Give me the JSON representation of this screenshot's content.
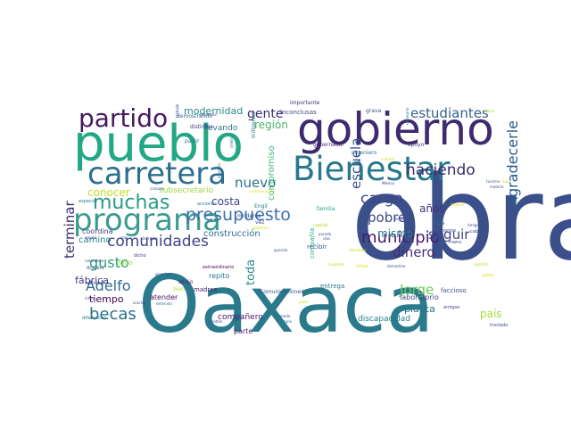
{
  "wordcloud": {
    "words": [
      {
        "text": "obra",
        "color": "#3b4f8a",
        "weight": 100
      },
      {
        "text": "Oaxaca",
        "color": "#2b7a8c",
        "weight": 98
      },
      {
        "text": "pueblo",
        "color": "#22a884",
        "weight": 78
      },
      {
        "text": "gobierno",
        "color": "#3e2a6e",
        "weight": 72
      },
      {
        "text": "Bienestar",
        "color": "#2a788e",
        "weight": 62
      },
      {
        "text": "programa",
        "color": "#3a9b8e",
        "weight": 58
      },
      {
        "text": "carretera",
        "color": "#2c6e8e",
        "weight": 55
      },
      {
        "text": "partido",
        "color": "#46195e",
        "weight": 40
      },
      {
        "text": "muchas",
        "color": "#2a9a8a",
        "weight": 36
      },
      {
        "text": "presupuesto",
        "color": "#3b6fb0",
        "weight": 28
      },
      {
        "text": "comunidades",
        "color": "#414487",
        "weight": 25
      },
      {
        "text": "estudiantes",
        "color": "#355f8d",
        "weight": 22
      },
      {
        "text": "municipio",
        "color": "#481a6c",
        "weight": 24
      },
      {
        "text": "Agradecerle",
        "color": "#2a5d8e",
        "weight": 24
      },
      {
        "text": "gusto",
        "color": "#31a07e",
        "weight": 20
      },
      {
        "text": "cargo",
        "color": "#3e4989",
        "weight": 20
      },
      {
        "text": "haciendo",
        "color": "#3b2c70",
        "weight": 20
      },
      {
        "text": "Adelfo",
        "color": "#35688d",
        "weight": 20
      },
      {
        "text": "becas",
        "color": "#2a6f8c",
        "weight": 22
      },
      {
        "text": "Jorge",
        "color": "#6ccd5a",
        "weight": 20
      },
      {
        "text": "pobre",
        "color": "#3e4a89",
        "weight": 20
      },
      {
        "text": "seguir",
        "color": "#404588",
        "weight": 20
      },
      {
        "text": "dinero",
        "color": "#4a2c7a",
        "weight": 20
      },
      {
        "text": "escuela",
        "color": "#3b518b",
        "weight": 19
      },
      {
        "text": "terminar",
        "color": "#3e2f72",
        "weight": 18
      },
      {
        "text": "nuevo",
        "color": "#2b6f8e",
        "weight": 18
      },
      {
        "text": "gente",
        "color": "#3a2d71",
        "weight": 17
      },
      {
        "text": "mismo",
        "color": "#287a8c",
        "weight": 15
      },
      {
        "text": "región",
        "color": "#4bb56e",
        "weight": 15
      },
      {
        "text": "modernidad",
        "color": "#2c8a8a",
        "weight": 13
      },
      {
        "text": "costa",
        "color": "#3f4488",
        "weight": 13
      },
      {
        "text": "conocer",
        "color": "#bbdf27",
        "weight": 13
      },
      {
        "text": "toda",
        "color": "#2a8c8a",
        "weight": 14
      },
      {
        "text": "tiempo",
        "color": "#440154",
        "weight": 12
      },
      {
        "text": "construcción",
        "color": "#2e6e8e",
        "weight": 11
      },
      {
        "text": "años",
        "color": "#46327e",
        "weight": 13
      },
      {
        "text": "país",
        "color": "#a8db34",
        "weight": 14
      },
      {
        "text": "planta",
        "color": "#2a788e",
        "weight": 12
      },
      {
        "text": "compromiso",
        "color": "#3aba76",
        "weight": 10
      },
      {
        "text": "fábrica",
        "color": "#443a83",
        "weight": 11
      },
      {
        "text": "camino",
        "color": "#26828e",
        "weight": 10
      },
      {
        "text": "llevando",
        "color": "#2c728e",
        "weight": 9
      },
      {
        "text": "compañero",
        "color": "#481769",
        "weight": 9
      },
      {
        "text": "subsecretario",
        "color": "#9bd93c",
        "weight": 9
      },
      {
        "text": "discapacidad",
        "color": "#26828e",
        "weight": 9
      },
      {
        "text": "laboratorio",
        "color": "#3e4989",
        "weight": 8
      },
      {
        "text": "parte",
        "color": "#482475",
        "weight": 8
      },
      {
        "text": "repito",
        "color": "#2a768e",
        "weight": 8
      },
      {
        "text": "atender",
        "color": "#471365",
        "weight": 8
      },
      {
        "text": "julio",
        "color": "#a5db36",
        "weight": 8
      },
      {
        "text": "coordina",
        "color": "#433d84",
        "weight": 8
      },
      {
        "text": "recibir",
        "color": "#38588c",
        "weight": 7
      },
      {
        "text": "entrega",
        "color": "#2a768e",
        "weight": 7
      },
      {
        "text": "faccioso",
        "color": "#3b518b",
        "weight": 7
      },
      {
        "text": "compañía",
        "color": "#25ab82",
        "weight": 7
      },
      {
        "text": "madres",
        "color": "#481a6c",
        "weight": 7
      },
      {
        "text": "inconclusas",
        "color": "#3e4989",
        "weight": 7
      },
      {
        "text": "importante",
        "color": "#46327e",
        "weight": 6
      },
      {
        "text": "grava",
        "color": "#3b518b",
        "weight": 6
      },
      {
        "text": "Indígenas",
        "color": "#2a788e",
        "weight": 6
      },
      {
        "text": "gobernador",
        "color": "#482173",
        "weight": 6
      },
      {
        "text": "apoyo",
        "color": "#404588",
        "weight": 6
      },
      {
        "text": "ingeniero",
        "color": "#2a788e",
        "weight": 6
      },
      {
        "text": "demostrando",
        "color": "#31688e",
        "weight": 6
      },
      {
        "text": "distintos",
        "color": "#443983",
        "weight": 6
      },
      {
        "text": "partir",
        "color": "#2a788e",
        "weight": 6
      },
      {
        "text": "moderna",
        "color": "#3b518b",
        "weight": 6
      },
      {
        "text": "Engil",
        "color": "#2a788e",
        "weight": 6
      },
      {
        "text": "familia",
        "color": "#20a386",
        "weight": 6
      },
      {
        "text": "Comunicaciones",
        "color": "#3b518b",
        "weight": 6
      },
      {
        "text": "abajo",
        "color": "#482878",
        "weight": 6
      },
      {
        "text": "bien",
        "color": "#b5de2b",
        "weight": 6
      },
      {
        "text": "vez",
        "color": "#3b518b",
        "weight": 6
      },
      {
        "text": "acciones",
        "color": "#2a788e",
        "weight": 5
      },
      {
        "text": "dicho",
        "color": "#453781",
        "weight": 5
      },
      {
        "text": "Ariadna",
        "color": "#3b518b",
        "weight": 5
      },
      {
        "text": "nacional",
        "color": "#3e4989",
        "weight": 5
      },
      {
        "text": "extraordinario",
        "color": "#440154",
        "weight": 5
      },
      {
        "text": "diferencias",
        "color": "#2a788e",
        "weight": 5
      },
      {
        "text": "Mota",
        "color": "#31688e",
        "weight": 5
      },
      {
        "text": "enorme",
        "color": "#3b518b",
        "weight": 5
      },
      {
        "text": "mano",
        "color": "#3b518b",
        "weight": 5
      },
      {
        "text": "amigos",
        "color": "#404588",
        "weight": 5
      },
      {
        "text": "niñas",
        "color": "#d8e219",
        "weight": 5
      },
      {
        "text": "capital",
        "color": "#b5de2b",
        "weight": 5
      },
      {
        "text": "especial",
        "color": "#2a788e",
        "weight": 5
      },
      {
        "text": "cabo",
        "color": "#3b518b",
        "weight": 5
      },
      {
        "text": "traslado",
        "color": "#3b518b",
        "weight": 5
      },
      {
        "text": "turismo",
        "color": "#3b518b",
        "weight": 4
      },
      {
        "text": "materia",
        "color": "#3b518b",
        "weight": 4
      },
      {
        "text": "México",
        "color": "#443983",
        "weight": 4
      },
      {
        "text": "celebro",
        "color": "#2a788e",
        "weight": 4
      },
      {
        "text": "decidido",
        "color": "#2a788e",
        "weight": 4
      },
      {
        "text": "recreación",
        "color": "#3b518b",
        "weight": 4
      },
      {
        "text": "parada",
        "color": "#3b518b",
        "weight": 4
      },
      {
        "text": "olas",
        "color": "#3b518b",
        "weight": 4
      },
      {
        "text": "Vicente",
        "color": "#d8e219",
        "weight": 4
      },
      {
        "text": "Amigas",
        "color": "#3b518b",
        "weight": 4
      },
      {
        "text": "significa",
        "color": "#b5de2b",
        "weight": 4
      },
      {
        "text": "gobernar",
        "color": "#d8e219",
        "weight": 4
      },
      {
        "text": "empresas",
        "color": "#3b518b",
        "weight": 4
      },
      {
        "text": "ejemplo",
        "color": "#2a788e",
        "weight": 4
      },
      {
        "text": "detenida",
        "color": "#2a788e",
        "weight": 4
      },
      {
        "text": "acortar",
        "color": "#3b518b",
        "weight": 4
      },
      {
        "text": "grandeza",
        "color": "#3b518b",
        "weight": 4
      },
      {
        "text": "Coatlán",
        "color": "#3b518b",
        "weight": 4
      },
      {
        "text": "Mendoza",
        "color": "#d8e219",
        "weight": 4
      },
      {
        "text": "amplio",
        "color": "#3b518b",
        "weight": 4
      },
      {
        "text": "niños",
        "color": "#3b518b",
        "weight": 4
      },
      {
        "text": "sale",
        "color": "#3b518b",
        "weight": 4
      },
      {
        "text": "disfrutan",
        "color": "#3b518b",
        "weight": 4
      },
      {
        "text": "naturaleza",
        "color": "#3b518b",
        "weight": 4
      },
      {
        "text": "junto",
        "color": "#b5de2b",
        "weight": 4
      },
      {
        "text": "modo",
        "color": "#3b518b",
        "weight": 4
      },
      {
        "text": "cultural",
        "color": "#d8e219",
        "weight": 4
      },
      {
        "text": "padres",
        "color": "#d8e219",
        "weight": 4
      },
      {
        "text": "demostrar",
        "color": "#3b518b",
        "weight": 4
      },
      {
        "text": "ciudades",
        "color": "#b5de2b",
        "weight": 4
      },
      {
        "text": "querido",
        "color": "#3b518b",
        "weight": 4
      },
      {
        "text": "comunicación",
        "color": "#d8e219",
        "weight": 4
      },
      {
        "text": "conozco",
        "color": "#3b518b",
        "weight": 4
      },
      {
        "text": "San",
        "color": "#b5de2b",
        "weight": 4
      },
      {
        "text": "necesario",
        "color": "#2a788e",
        "weight": 4
      },
      {
        "text": "trabajar",
        "color": "#3b518b",
        "weight": 4
      },
      {
        "text": "mejor",
        "color": "#b5de2b",
        "weight": 4
      }
    ]
  }
}
